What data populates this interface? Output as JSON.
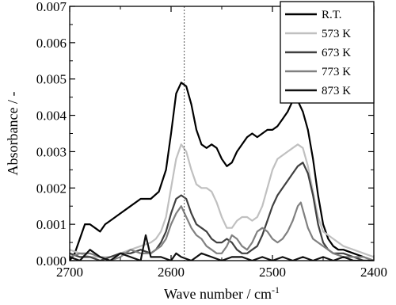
{
  "chart_data": {
    "type": "line",
    "xlabel": "Wave number / cm",
    "xlabel_sup": "-1",
    "ylabel": "Absorbance / -",
    "xlim": [
      2700,
      2400
    ],
    "ylim": [
      0,
      0.007
    ],
    "x_reversed": true,
    "x_ticks": [
      2700,
      2600,
      2500,
      2400
    ],
    "x_tick_labels": [
      "2700",
      "2600",
      "2500",
      "2400"
    ],
    "y_ticks": [
      0,
      0.001,
      0.002,
      0.003,
      0.004,
      0.005,
      0.006,
      0.007
    ],
    "y_tick_labels": [
      "0.000",
      "0.001",
      "0.002",
      "0.003",
      "0.004",
      "0.005",
      "0.006",
      "0.007"
    ],
    "reference_line_x": 2587,
    "legend_position": "top-right",
    "grid": false,
    "series": [
      {
        "name": "R.T.",
        "color": "#000000",
        "points": [
          [
            2700,
            0.0
          ],
          [
            2695,
            0.0002
          ],
          [
            2690,
            0.0006
          ],
          [
            2685,
            0.001
          ],
          [
            2680,
            0.001
          ],
          [
            2675,
            0.0009
          ],
          [
            2670,
            0.0008
          ],
          [
            2665,
            0.001
          ],
          [
            2660,
            0.0011
          ],
          [
            2650,
            0.0013
          ],
          [
            2640,
            0.0015
          ],
          [
            2630,
            0.0017
          ],
          [
            2620,
            0.0017
          ],
          [
            2612,
            0.0019
          ],
          [
            2605,
            0.0025
          ],
          [
            2600,
            0.0035
          ],
          [
            2595,
            0.0046
          ],
          [
            2590,
            0.0049
          ],
          [
            2585,
            0.0048
          ],
          [
            2580,
            0.0043
          ],
          [
            2575,
            0.0036
          ],
          [
            2570,
            0.0032
          ],
          [
            2565,
            0.0031
          ],
          [
            2560,
            0.0032
          ],
          [
            2555,
            0.0031
          ],
          [
            2550,
            0.0028
          ],
          [
            2545,
            0.0026
          ],
          [
            2540,
            0.0027
          ],
          [
            2535,
            0.003
          ],
          [
            2530,
            0.0032
          ],
          [
            2525,
            0.0034
          ],
          [
            2520,
            0.0035
          ],
          [
            2515,
            0.0034
          ],
          [
            2510,
            0.0035
          ],
          [
            2505,
            0.0036
          ],
          [
            2500,
            0.0036
          ],
          [
            2495,
            0.0037
          ],
          [
            2490,
            0.0039
          ],
          [
            2485,
            0.0041
          ],
          [
            2480,
            0.0044
          ],
          [
            2475,
            0.0044
          ],
          [
            2470,
            0.0041
          ],
          [
            2465,
            0.0036
          ],
          [
            2460,
            0.0028
          ],
          [
            2455,
            0.0018
          ],
          [
            2450,
            0.001
          ],
          [
            2445,
            0.0006
          ],
          [
            2440,
            0.0004
          ],
          [
            2435,
            0.0003
          ],
          [
            2430,
            0.0003
          ],
          [
            2420,
            0.0002
          ],
          [
            2410,
            0.0001
          ],
          [
            2400,
            0.0
          ]
        ]
      },
      {
        "name": "573 K",
        "color": "#c0c0c0",
        "points": [
          [
            2700,
            0.0003
          ],
          [
            2690,
            0.0002
          ],
          [
            2680,
            0.0001
          ],
          [
            2670,
            0.0001
          ],
          [
            2660,
            0.0001
          ],
          [
            2650,
            0.0002
          ],
          [
            2640,
            0.0003
          ],
          [
            2630,
            0.0004
          ],
          [
            2620,
            0.0005
          ],
          [
            2615,
            0.0006
          ],
          [
            2610,
            0.0008
          ],
          [
            2605,
            0.0012
          ],
          [
            2600,
            0.002
          ],
          [
            2595,
            0.0028
          ],
          [
            2590,
            0.0032
          ],
          [
            2585,
            0.003
          ],
          [
            2580,
            0.0025
          ],
          [
            2575,
            0.0021
          ],
          [
            2570,
            0.002
          ],
          [
            2565,
            0.002
          ],
          [
            2560,
            0.0019
          ],
          [
            2555,
            0.0016
          ],
          [
            2550,
            0.0012
          ],
          [
            2545,
            0.0009
          ],
          [
            2540,
            0.0009
          ],
          [
            2535,
            0.0011
          ],
          [
            2530,
            0.0012
          ],
          [
            2525,
            0.0012
          ],
          [
            2520,
            0.0011
          ],
          [
            2515,
            0.0012
          ],
          [
            2510,
            0.0015
          ],
          [
            2505,
            0.002
          ],
          [
            2500,
            0.0025
          ],
          [
            2495,
            0.0028
          ],
          [
            2490,
            0.0029
          ],
          [
            2485,
            0.003
          ],
          [
            2480,
            0.0031
          ],
          [
            2475,
            0.0032
          ],
          [
            2470,
            0.0031
          ],
          [
            2465,
            0.0026
          ],
          [
            2460,
            0.0019
          ],
          [
            2455,
            0.0012
          ],
          [
            2450,
            0.0008
          ],
          [
            2445,
            0.0007
          ],
          [
            2440,
            0.0006
          ],
          [
            2430,
            0.0004
          ],
          [
            2420,
            0.0003
          ],
          [
            2410,
            0.0002
          ],
          [
            2400,
            0.0001
          ]
        ]
      },
      {
        "name": "673 K",
        "color": "#404040",
        "points": [
          [
            2700,
            0.0002
          ],
          [
            2690,
            0.0001
          ],
          [
            2680,
            0.0001
          ],
          [
            2670,
            0.0
          ],
          [
            2660,
            0.0001
          ],
          [
            2650,
            0.0002
          ],
          [
            2640,
            0.0002
          ],
          [
            2630,
            0.0003
          ],
          [
            2620,
            0.0002
          ],
          [
            2615,
            0.0003
          ],
          [
            2610,
            0.0005
          ],
          [
            2605,
            0.0008
          ],
          [
            2600,
            0.0013
          ],
          [
            2595,
            0.0017
          ],
          [
            2590,
            0.0018
          ],
          [
            2585,
            0.0017
          ],
          [
            2580,
            0.0013
          ],
          [
            2575,
            0.001
          ],
          [
            2570,
            0.0009
          ],
          [
            2565,
            0.0008
          ],
          [
            2560,
            0.0006
          ],
          [
            2555,
            0.0005
          ],
          [
            2550,
            0.0005
          ],
          [
            2545,
            0.0006
          ],
          [
            2540,
            0.0005
          ],
          [
            2535,
            0.0003
          ],
          [
            2530,
            0.0002
          ],
          [
            2525,
            0.0002
          ],
          [
            2520,
            0.0003
          ],
          [
            2515,
            0.0004
          ],
          [
            2510,
            0.0007
          ],
          [
            2505,
            0.0011
          ],
          [
            2500,
            0.0015
          ],
          [
            2495,
            0.0018
          ],
          [
            2490,
            0.002
          ],
          [
            2485,
            0.0022
          ],
          [
            2480,
            0.0024
          ],
          [
            2475,
            0.0026
          ],
          [
            2470,
            0.0027
          ],
          [
            2465,
            0.0024
          ],
          [
            2460,
            0.0018
          ],
          [
            2455,
            0.001
          ],
          [
            2450,
            0.0005
          ],
          [
            2445,
            0.0003
          ],
          [
            2440,
            0.0002
          ],
          [
            2430,
            0.0002
          ],
          [
            2420,
            0.0001
          ],
          [
            2410,
            0.0
          ],
          [
            2400,
            0.0
          ]
        ]
      },
      {
        "name": "773 K",
        "color": "#808080",
        "points": [
          [
            2700,
            0.0001
          ],
          [
            2690,
            0.0002
          ],
          [
            2680,
            0.0002
          ],
          [
            2670,
            0.0001
          ],
          [
            2660,
            0.0
          ],
          [
            2650,
            0.0001
          ],
          [
            2640,
            0.0003
          ],
          [
            2630,
            0.0002
          ],
          [
            2620,
            0.0002
          ],
          [
            2615,
            0.0003
          ],
          [
            2610,
            0.0004
          ],
          [
            2605,
            0.0006
          ],
          [
            2600,
            0.001
          ],
          [
            2595,
            0.0013
          ],
          [
            2590,
            0.0015
          ],
          [
            2585,
            0.0012
          ],
          [
            2580,
            0.0009
          ],
          [
            2575,
            0.0007
          ],
          [
            2570,
            0.0006
          ],
          [
            2565,
            0.0004
          ],
          [
            2560,
            0.0003
          ],
          [
            2555,
            0.0002
          ],
          [
            2550,
            0.0002
          ],
          [
            2545,
            0.0004
          ],
          [
            2540,
            0.0007
          ],
          [
            2535,
            0.0006
          ],
          [
            2530,
            0.0004
          ],
          [
            2525,
            0.0003
          ],
          [
            2520,
            0.0005
          ],
          [
            2515,
            0.0008
          ],
          [
            2510,
            0.0009
          ],
          [
            2505,
            0.0008
          ],
          [
            2500,
            0.0006
          ],
          [
            2495,
            0.0005
          ],
          [
            2490,
            0.0006
          ],
          [
            2485,
            0.0008
          ],
          [
            2480,
            0.0011
          ],
          [
            2475,
            0.0015
          ],
          [
            2472,
            0.0016
          ],
          [
            2470,
            0.0014
          ],
          [
            2465,
            0.0009
          ],
          [
            2460,
            0.0006
          ],
          [
            2455,
            0.0005
          ],
          [
            2450,
            0.0004
          ],
          [
            2445,
            0.0003
          ],
          [
            2440,
            0.0002
          ],
          [
            2430,
            0.0001
          ],
          [
            2420,
            0.0001
          ],
          [
            2410,
            0.0001
          ],
          [
            2400,
            0.0
          ]
        ]
      },
      {
        "name": "873 K",
        "color": "#111111",
        "points": [
          [
            2700,
            0.0001
          ],
          [
            2690,
            0.0
          ],
          [
            2680,
            0.0003
          ],
          [
            2670,
            0.0001
          ],
          [
            2660,
            0.0
          ],
          [
            2650,
            0.0002
          ],
          [
            2640,
            0.0001
          ],
          [
            2630,
            0.0
          ],
          [
            2625,
            0.0007
          ],
          [
            2620,
            0.0001
          ],
          [
            2610,
            0.0001
          ],
          [
            2600,
            0.0
          ],
          [
            2595,
            0.0002
          ],
          [
            2590,
            0.0001
          ],
          [
            2580,
            0.0
          ],
          [
            2570,
            0.0002
          ],
          [
            2560,
            0.0001
          ],
          [
            2550,
            0.0
          ],
          [
            2540,
            0.0001
          ],
          [
            2530,
            0.0001
          ],
          [
            2520,
            0.0
          ],
          [
            2510,
            0.0001
          ],
          [
            2500,
            0.0
          ],
          [
            2490,
            0.0001
          ],
          [
            2480,
            0.0
          ],
          [
            2470,
            0.0001
          ],
          [
            2460,
            0.0
          ],
          [
            2450,
            0.0001
          ],
          [
            2440,
            0.0
          ],
          [
            2430,
            0.0001
          ],
          [
            2420,
            0.0
          ],
          [
            2410,
            0.0
          ],
          [
            2400,
            0.0
          ]
        ]
      }
    ]
  }
}
